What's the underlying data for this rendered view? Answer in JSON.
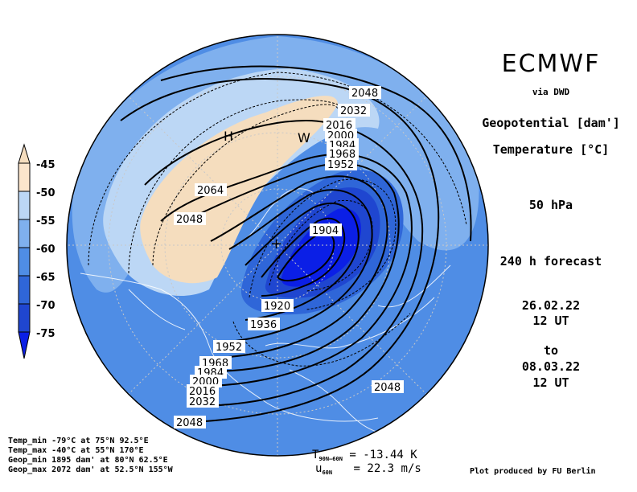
{
  "header": {
    "source": "ECMWF",
    "via": "via DWD",
    "variable1": "Geopotential [dam']",
    "variable2": "Temperature [°C]",
    "level": "50 hPa",
    "forecast": "240 h forecast",
    "init_date": "26.02.22",
    "init_time": "12 UT",
    "to": "to",
    "valid_date": "08.03.22",
    "valid_time": "12 UT"
  },
  "colorbar": {
    "labels": [
      "-45",
      "-50",
      "-55",
      "-60",
      "-65",
      "-70",
      "-75"
    ],
    "colors": [
      "#f5ddbe",
      "#fbe5cc",
      "#bcd7f5",
      "#7fb0ee",
      "#4f8de5",
      "#2f66d8",
      "#1f46d0",
      "#0b1fe6"
    ]
  },
  "map": {
    "markers": {
      "high": "H",
      "warm": "W"
    },
    "contour_labels": [
      "2048",
      "2032",
      "2016",
      "2000",
      "1984",
      "1968",
      "1952",
      "2064",
      "2048",
      "1904",
      "1920",
      "1936",
      "1952",
      "1968",
      "1984",
      "2000",
      "2016",
      "2032",
      "2048",
      "2048"
    ]
  },
  "footer": {
    "temp_min": "Temp_min -79°C at 75°N 92.5°E",
    "temp_max": "Temp_max -40°C at 55°N 170°E",
    "geop_min": "Geop_min 1895 dam' at 80°N 62.5°E",
    "geop_max": "Geop_max 2072 dam' at 52.5°N 155°W",
    "t_label": "T",
    "t_sub": "90N–60N",
    "t_value": "= -13.44 K",
    "u_label": "u",
    "u_sub": "60N",
    "u_value": "= 22.3 m/s",
    "credit": "Plot produced by FU Berlin"
  }
}
